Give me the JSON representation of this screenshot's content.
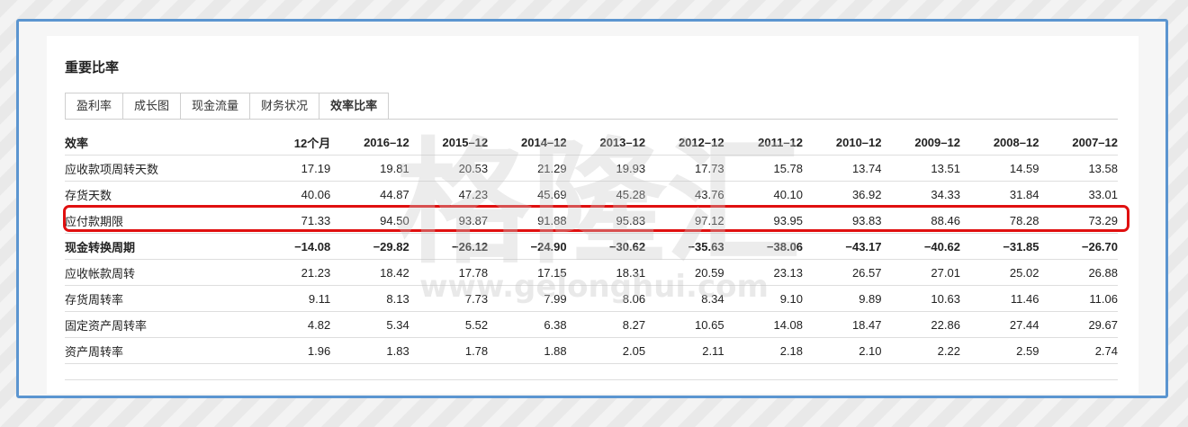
{
  "title": "重要比率",
  "tabs": [
    "盈利率",
    "成长图",
    "现金流量",
    "财务状况",
    "效率比率"
  ],
  "active_tab": "效率比率",
  "table": {
    "header": [
      "效率",
      "12个月",
      "2016–12",
      "2015–12",
      "2014–12",
      "2013–12",
      "2012–12",
      "2011–12",
      "2010–12",
      "2009–12",
      "2008–12",
      "2007–12"
    ],
    "rows": [
      [
        "应收款项周转天数",
        "17.19",
        "19.81",
        "20.53",
        "21.29",
        "19.93",
        "17.73",
        "15.78",
        "13.74",
        "13.51",
        "14.59",
        "13.58"
      ],
      [
        "存货天数",
        "40.06",
        "44.87",
        "47.23",
        "45.69",
        "45.28",
        "43.76",
        "40.10",
        "36.92",
        "34.33",
        "31.84",
        "33.01"
      ],
      [
        "应付款期限",
        "71.33",
        "94.50",
        "93.87",
        "91.88",
        "95.83",
        "97.12",
        "93.95",
        "93.83",
        "88.46",
        "78.28",
        "73.29"
      ],
      [
        "现金转换周期",
        "−14.08",
        "−29.82",
        "−26.12",
        "−24.90",
        "−30.62",
        "−35.63",
        "−38.06",
        "−43.17",
        "−40.62",
        "−31.85",
        "−26.70"
      ],
      [
        "应收帐款周转",
        "21.23",
        "18.42",
        "17.78",
        "17.15",
        "18.31",
        "20.59",
        "23.13",
        "26.57",
        "27.01",
        "25.02",
        "26.88"
      ],
      [
        "存货周转率",
        "9.11",
        "8.13",
        "7.73",
        "7.99",
        "8.06",
        "8.34",
        "9.10",
        "9.89",
        "10.63",
        "11.46",
        "11.06"
      ],
      [
        "固定资产周转率",
        "4.82",
        "5.34",
        "5.52",
        "6.38",
        "8.27",
        "10.65",
        "14.08",
        "18.47",
        "22.86",
        "27.44",
        "29.67"
      ],
      [
        "资产周转率",
        "1.96",
        "1.83",
        "1.78",
        "1.88",
        "2.05",
        "2.11",
        "2.18",
        "2.10",
        "2.22",
        "2.59",
        "2.74"
      ]
    ]
  },
  "watermark": {
    "text_cn": "格隆汇",
    "text_url": "www.gelonghui.com"
  },
  "colors": {
    "frame": "#5b95d0",
    "highlight": "#e01010"
  }
}
